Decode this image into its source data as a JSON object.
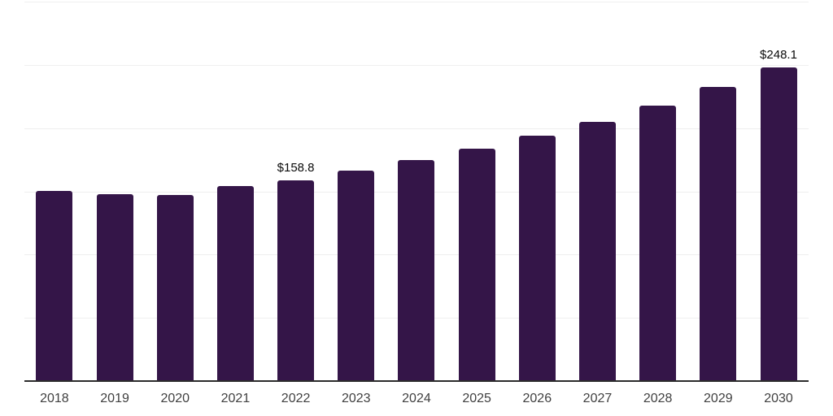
{
  "chart_data": {
    "type": "bar",
    "title": "",
    "xlabel": "",
    "ylabel": "",
    "categories": [
      "2018",
      "2019",
      "2020",
      "2021",
      "2022",
      "2023",
      "2024",
      "2025",
      "2026",
      "2027",
      "2028",
      "2029",
      "2030"
    ],
    "values": [
      150.4,
      147.9,
      146.9,
      153.9,
      158.8,
      166.5,
      174.6,
      183.7,
      193.8,
      204.8,
      217.7,
      232.8,
      248.1
    ],
    "data_labels": [
      {
        "category": "2022",
        "text": "$158.8"
      },
      {
        "category": "2030",
        "text": "$248.1"
      }
    ],
    "ylim": [
      0,
      300
    ],
    "grid": true,
    "grid_step": 50,
    "y_axis_tick_labels_visible": false,
    "legend_position": "none",
    "colors": {
      "bar": "#341548",
      "axis_line": "#2b2b2b",
      "gridline": "#efefef",
      "value_label": "#0a0a0a",
      "tick_label": "#404040",
      "background": "#ffffff"
    }
  }
}
